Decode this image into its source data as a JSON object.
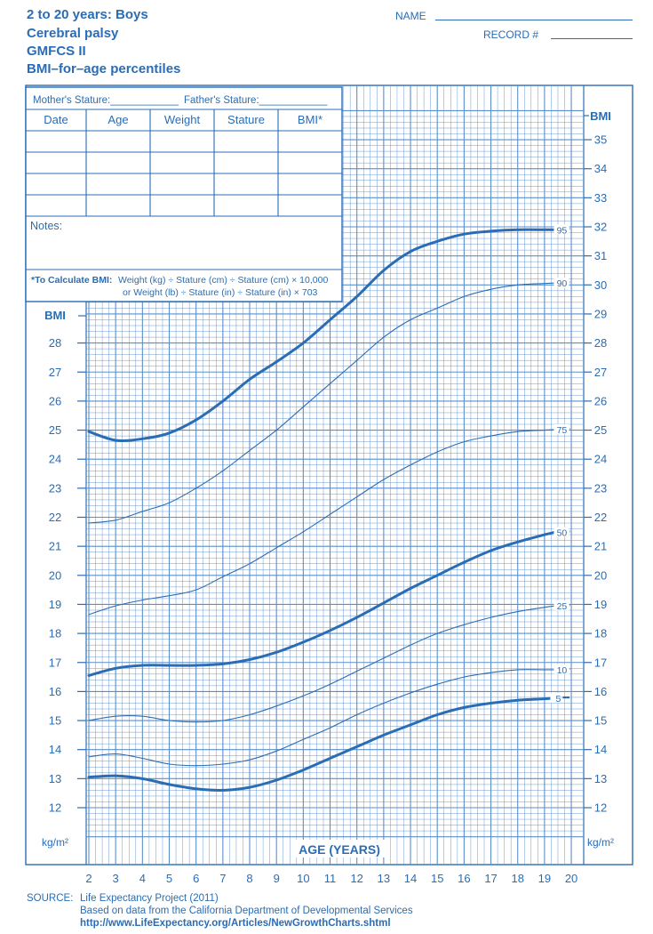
{
  "title_lines": [
    "2 to 20 years: Boys",
    "Cerebral palsy",
    "GMFCS II",
    "BMI–for–age percentiles"
  ],
  "header_fields": {
    "name_label": "NAME",
    "record_label": "RECORD #"
  },
  "record_table": {
    "mother_stature_label": "Mother's Stature:____________",
    "father_stature_label": "Father's Stature:____________",
    "columns": [
      "Date",
      "Age",
      "Weight",
      "Stature",
      "BMI*"
    ],
    "empty_rows": 4,
    "notes_label": "Notes:",
    "calc_bold": "*To Calculate BMI:",
    "calc_line1": "Weight (kg) ÷ Stature (cm) ÷ Stature (cm) × 10,000",
    "calc_line2": "or Weight (lb) ÷ Stature (in) ÷ Stature (in) × 703"
  },
  "source": {
    "label": "SOURCE:",
    "line1": "Life Expectancy Project (2011)",
    "line2": "Based on data from the California Department of Developmental Services",
    "link": "http://www.LifeExpectancy.org/Articles/NewGrowthCharts.shtml"
  },
  "colors": {
    "ink": "#2a6db5",
    "grid": "#5b8fcc"
  },
  "chart_data": {
    "type": "line",
    "xlabel": "AGE (YEARS)",
    "ylabel": "BMI",
    "y_unit": "kg/m²",
    "x_ticks": [
      2,
      3,
      4,
      5,
      6,
      7,
      8,
      9,
      10,
      11,
      12,
      13,
      14,
      15,
      16,
      17,
      18,
      19,
      20
    ],
    "y_ticks_right": [
      12,
      13,
      14,
      15,
      16,
      17,
      18,
      19,
      20,
      21,
      22,
      23,
      24,
      25,
      26,
      27,
      28,
      29,
      30,
      31,
      32,
      33,
      34,
      35
    ],
    "y_ticks_left": [
      12,
      13,
      14,
      15,
      16,
      17,
      18,
      19,
      20,
      21,
      22,
      23,
      24,
      25,
      26,
      27,
      28
    ],
    "xlim": [
      2,
      20
    ],
    "ylim": [
      11,
      36
    ],
    "grid": true,
    "x": [
      2,
      3,
      4,
      5,
      6,
      7,
      8,
      9,
      10,
      11,
      12,
      13,
      14,
      15,
      16,
      17,
      18,
      19
    ],
    "series": [
      {
        "name": "95",
        "bold": true,
        "values": [
          24.95,
          24.65,
          24.7,
          24.9,
          25.35,
          26.0,
          26.75,
          27.35,
          28.0,
          28.8,
          29.6,
          30.5,
          31.15,
          31.5,
          31.75,
          31.85,
          31.9,
          31.9
        ]
      },
      {
        "name": "90",
        "bold": false,
        "values": [
          21.8,
          21.9,
          22.2,
          22.5,
          23.0,
          23.6,
          24.3,
          25.0,
          25.8,
          26.6,
          27.4,
          28.2,
          28.8,
          29.2,
          29.6,
          29.85,
          30.0,
          30.05
        ]
      },
      {
        "name": "75",
        "bold": false,
        "values": [
          18.65,
          18.95,
          19.15,
          19.3,
          19.5,
          19.95,
          20.4,
          20.95,
          21.5,
          22.1,
          22.7,
          23.3,
          23.8,
          24.25,
          24.6,
          24.8,
          24.95,
          25.0
        ]
      },
      {
        "name": "50",
        "bold": true,
        "values": [
          16.55,
          16.8,
          16.9,
          16.9,
          16.9,
          16.95,
          17.1,
          17.35,
          17.7,
          18.1,
          18.55,
          19.05,
          19.55,
          20.0,
          20.45,
          20.85,
          21.15,
          21.4
        ]
      },
      {
        "name": "25",
        "bold": false,
        "values": [
          15.0,
          15.15,
          15.15,
          15.0,
          14.95,
          15.0,
          15.2,
          15.5,
          15.85,
          16.25,
          16.7,
          17.15,
          17.6,
          18.0,
          18.3,
          18.55,
          18.75,
          18.9
        ]
      },
      {
        "name": "10",
        "bold": false,
        "values": [
          13.75,
          13.85,
          13.7,
          13.5,
          13.45,
          13.5,
          13.65,
          13.95,
          14.35,
          14.75,
          15.2,
          15.6,
          15.95,
          16.25,
          16.5,
          16.65,
          16.75,
          16.75
        ]
      },
      {
        "name": "5",
        "bold": true,
        "values": [
          13.05,
          13.1,
          13.0,
          12.8,
          12.65,
          12.6,
          12.7,
          12.95,
          13.3,
          13.7,
          14.1,
          14.5,
          14.85,
          15.2,
          15.45,
          15.6,
          15.7,
          15.75
        ]
      }
    ]
  }
}
